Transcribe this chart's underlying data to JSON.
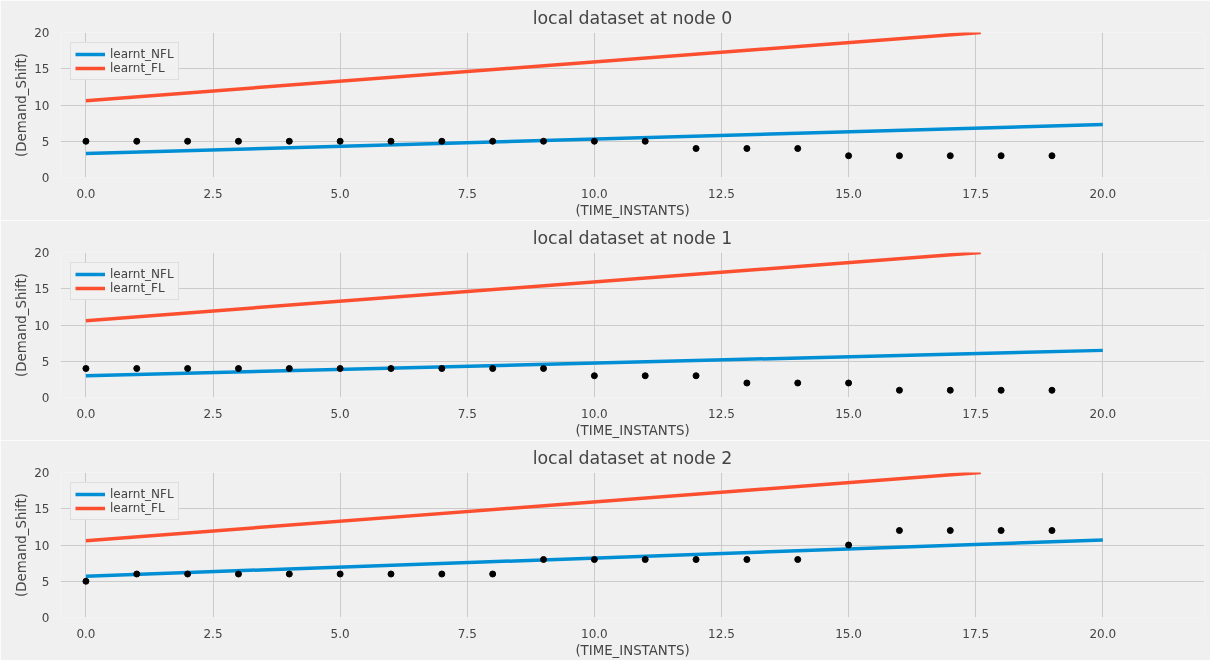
{
  "chart_data": [
    {
      "type": "line",
      "title": "local dataset at node 0",
      "xlabel": "(TIME_INSTANTS)",
      "ylabel": "(Demand_Shift)",
      "xlim": [
        -0.5,
        22
      ],
      "ylim": [
        0,
        20
      ],
      "xticks": [
        {
          "value": 0,
          "label": "0.0"
        },
        {
          "value": 2.5,
          "label": "2.5"
        },
        {
          "value": 5,
          "label": "5.0"
        },
        {
          "value": 7.5,
          "label": "7.5"
        },
        {
          "value": 10,
          "label": "10.0"
        },
        {
          "value": 12.5,
          "label": "12.5"
        },
        {
          "value": 15,
          "label": "15.0"
        },
        {
          "value": 17.5,
          "label": "17.5"
        },
        {
          "value": 20,
          "label": "20.0"
        }
      ],
      "yticks": [
        0,
        5,
        10,
        15,
        20
      ],
      "grid": true,
      "legend": "top left",
      "series": [
        {
          "name": "learnt_NFL",
          "color": "#008fd5",
          "x": [
            0,
            20
          ],
          "values": [
            3.3,
            7.3
          ]
        },
        {
          "name": "learnt_FL",
          "color": "#fc4f30",
          "x": [
            0,
            17.6
          ],
          "values": [
            10.6,
            20
          ]
        },
        {
          "type": "scatter",
          "color": "#000000",
          "marker": "circle",
          "x": [
            0,
            1,
            2,
            3,
            4,
            5,
            6,
            7,
            8,
            9,
            10,
            11,
            12,
            13,
            14,
            15,
            16,
            17,
            18,
            19
          ],
          "values": [
            5,
            5,
            5,
            5,
            5,
            5,
            5,
            5,
            5,
            5,
            5,
            5,
            4,
            4,
            4,
            3,
            3,
            3,
            3,
            3
          ]
        }
      ]
    },
    {
      "type": "line",
      "title": "local dataset at node 1",
      "xlabel": "(TIME_INSTANTS)",
      "ylabel": "(Demand_Shift)",
      "xlim": [
        -0.5,
        22
      ],
      "ylim": [
        0,
        20
      ],
      "xticks": [
        {
          "value": 0,
          "label": "0.0"
        },
        {
          "value": 2.5,
          "label": "2.5"
        },
        {
          "value": 5,
          "label": "5.0"
        },
        {
          "value": 7.5,
          "label": "7.5"
        },
        {
          "value": 10,
          "label": "10.0"
        },
        {
          "value": 12.5,
          "label": "12.5"
        },
        {
          "value": 15,
          "label": "15.0"
        },
        {
          "value": 17.5,
          "label": "17.5"
        },
        {
          "value": 20,
          "label": "20.0"
        }
      ],
      "yticks": [
        0,
        5,
        10,
        15,
        20
      ],
      "grid": true,
      "legend": "top left",
      "series": [
        {
          "name": "learnt_NFL",
          "color": "#008fd5",
          "x": [
            0,
            20
          ],
          "values": [
            3.0,
            6.5
          ]
        },
        {
          "name": "learnt_FL",
          "color": "#fc4f30",
          "x": [
            0,
            17.6
          ],
          "values": [
            10.6,
            20
          ]
        },
        {
          "type": "scatter",
          "color": "#000000",
          "marker": "circle",
          "x": [
            0,
            1,
            2,
            3,
            4,
            5,
            6,
            7,
            8,
            9,
            10,
            11,
            12,
            13,
            14,
            15,
            16,
            17,
            18,
            19
          ],
          "values": [
            4,
            4,
            4,
            4,
            4,
            4,
            4,
            4,
            4,
            4,
            3,
            3,
            3,
            2,
            2,
            2,
            1,
            1,
            1,
            1
          ]
        }
      ]
    },
    {
      "type": "line",
      "title": "local dataset at node 2",
      "xlabel": "(TIME_INSTANTS)",
      "ylabel": "(Demand_Shift)",
      "xlim": [
        -0.5,
        22
      ],
      "ylim": [
        0,
        20
      ],
      "xticks": [
        {
          "value": 0,
          "label": "0.0"
        },
        {
          "value": 2.5,
          "label": "2.5"
        },
        {
          "value": 5,
          "label": "5.0"
        },
        {
          "value": 7.5,
          "label": "7.5"
        },
        {
          "value": 10,
          "label": "10.0"
        },
        {
          "value": 12.5,
          "label": "12.5"
        },
        {
          "value": 15,
          "label": "15.0"
        },
        {
          "value": 17.5,
          "label": "17.5"
        },
        {
          "value": 20,
          "label": "20.0"
        }
      ],
      "yticks": [
        0,
        5,
        10,
        15,
        20
      ],
      "grid": true,
      "legend": "top left",
      "series": [
        {
          "name": "learnt_NFL",
          "color": "#008fd5",
          "x": [
            0,
            20
          ],
          "values": [
            5.7,
            10.7
          ]
        },
        {
          "name": "learnt_FL",
          "color": "#fc4f30",
          "x": [
            0,
            17.6
          ],
          "values": [
            10.6,
            20
          ]
        },
        {
          "type": "scatter",
          "color": "#000000",
          "marker": "circle",
          "x": [
            0,
            1,
            2,
            3,
            4,
            5,
            6,
            7,
            8,
            9,
            10,
            11,
            12,
            13,
            14,
            15,
            16,
            17,
            18,
            19
          ],
          "values": [
            5,
            6,
            6,
            6,
            6,
            6,
            6,
            6,
            6,
            8,
            8,
            8,
            8,
            8,
            8,
            10,
            12,
            12,
            12,
            12
          ]
        }
      ]
    }
  ]
}
